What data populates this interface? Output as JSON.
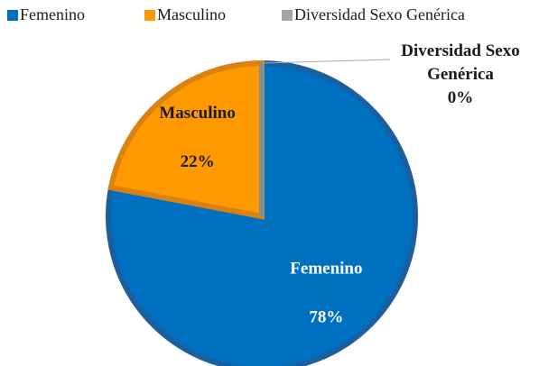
{
  "chart_data": {
    "type": "pie",
    "categories": [
      "Femenino",
      "Masculino",
      "Diversidad Sexo Genérica"
    ],
    "values": [
      78,
      22,
      0
    ],
    "value_labels": [
      "78%",
      "22%",
      "0%"
    ],
    "colors": [
      "#0070c0",
      "#ff9900",
      "#a5a5a5"
    ],
    "legend": "top"
  }
}
